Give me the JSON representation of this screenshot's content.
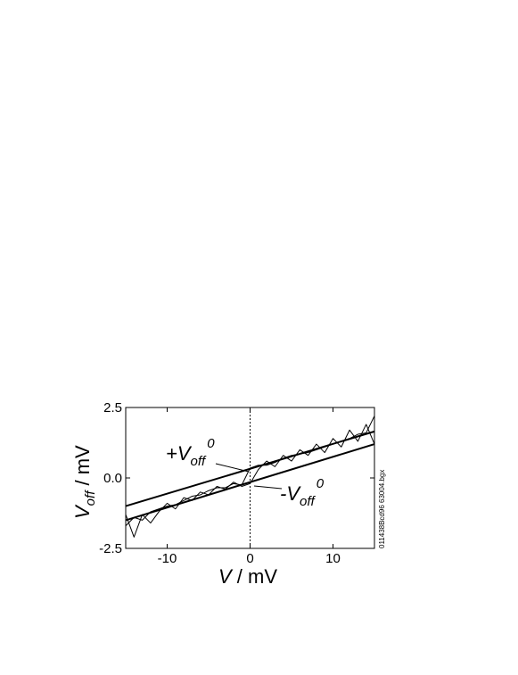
{
  "chart_data": {
    "type": "line",
    "x": [
      -15,
      -14,
      -13,
      -12,
      -11,
      -10,
      -9,
      -8,
      -7,
      -6,
      -5,
      -4,
      -3,
      -2,
      -1,
      0,
      1,
      2,
      3,
      4,
      5,
      6,
      7,
      8,
      9,
      10,
      11,
      12,
      13,
      14,
      15
    ],
    "series": [
      {
        "color": "#000000",
        "width": 1,
        "values": [
          -1.7,
          -1.4,
          -1.5,
          -1.2,
          -1.1,
          -1.0,
          -0.95,
          -0.8,
          -0.65,
          -0.6,
          -0.45,
          -0.35,
          -0.35,
          -0.2,
          -0.25,
          0.35,
          0.45,
          0.45,
          0.55,
          0.7,
          0.8,
          0.85,
          0.9,
          1.0,
          1.1,
          1.2,
          1.3,
          1.4,
          1.55,
          1.6,
          2.2
        ]
      },
      {
        "color": "#000000",
        "width": 1,
        "values": [
          -1.3,
          -2.1,
          -1.3,
          -1.6,
          -1.2,
          -0.9,
          -1.1,
          -0.7,
          -0.8,
          -0.5,
          -0.6,
          -0.3,
          -0.4,
          -0.15,
          -0.3,
          -0.2,
          0.3,
          0.6,
          0.4,
          0.8,
          0.6,
          1.0,
          0.8,
          1.2,
          0.9,
          1.4,
          1.1,
          1.7,
          1.3,
          1.9,
          1.2
        ]
      },
      {
        "color": "#000000",
        "width": 2,
        "x": [
          -15,
          15
        ],
        "values": [
          -1.0,
          1.65
        ]
      },
      {
        "color": "#000000",
        "width": 2,
        "x": [
          -15,
          15
        ],
        "values": [
          -1.5,
          1.2
        ]
      }
    ],
    "xlim": [
      -15,
      15
    ],
    "ylim": [
      -2.5,
      2.5
    ],
    "xticks": [
      -10,
      0,
      10
    ],
    "yticks": [
      2.5,
      {
        "value": 0,
        "label": "0.0"
      },
      -2.5
    ],
    "zero_line": {
      "x": 0,
      "style": "dashed"
    },
    "xlabel": {
      "main": "V",
      "rest": " / mV"
    },
    "ylabel": {
      "main": "V",
      "sub": "off",
      "rest": " / mV"
    },
    "annotations": [
      {
        "prefix": "+V",
        "sub": "off",
        "sup": "0"
      },
      {
        "prefix": "-V",
        "sub": "off",
        "sup": "0"
      }
    ],
    "side_note": "011438Bcd96 63004.bgx"
  }
}
